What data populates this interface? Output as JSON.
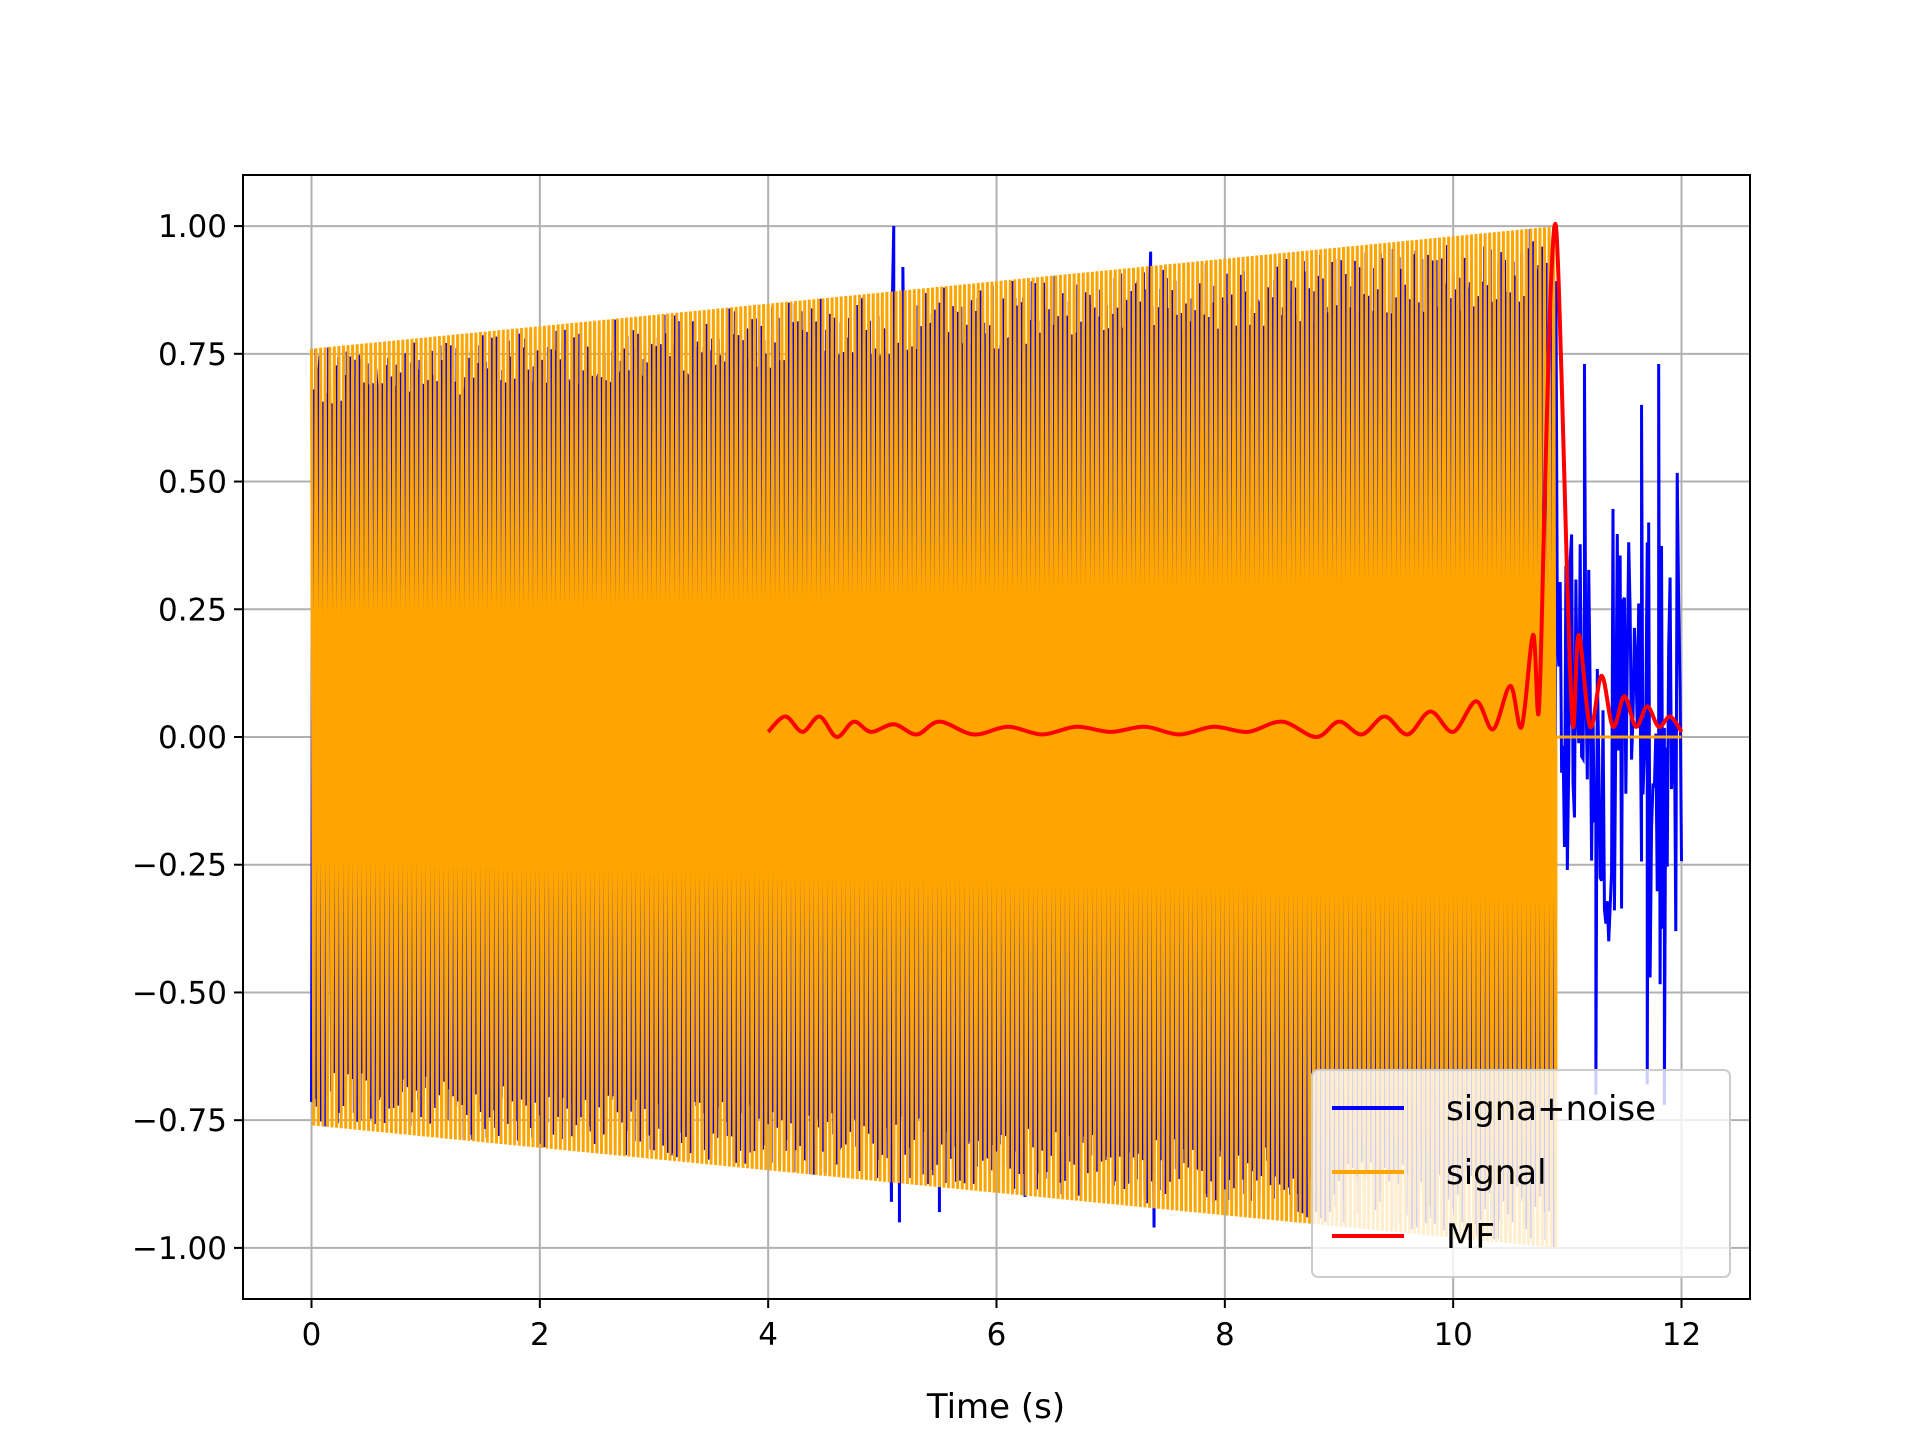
{
  "chart_data": {
    "type": "line",
    "title": "",
    "xlabel": "Time (s)",
    "ylabel": "",
    "xlim": [
      -0.6,
      12.6
    ],
    "ylim": [
      -1.1,
      1.1
    ],
    "grid": true,
    "legend_position": "lower-right",
    "x_ticks": [
      0,
      2,
      4,
      6,
      8,
      10,
      12
    ],
    "x_tick_labels": [
      "0",
      "2",
      "4",
      "6",
      "8",
      "10",
      "12"
    ],
    "y_ticks": [
      1.0,
      0.75,
      0.5,
      0.25,
      0.0,
      -0.25,
      -0.5,
      -0.75,
      -1.0
    ],
    "y_tick_labels": [
      "1.00",
      "0.75",
      "0.50",
      "0.25",
      "0.00",
      "−0.25",
      "−0.50",
      "−0.75",
      "−1.00"
    ],
    "series": [
      {
        "name": "signa+noise",
        "color": "#0000ff",
        "description_kind": "noisy-chirp",
        "x_range": [
          0,
          12
        ],
        "spikes": [
          {
            "x": 5.1,
            "y": 1.0
          },
          {
            "x": 5.18,
            "y": 0.92
          },
          {
            "x": 5.5,
            "y": 0.85
          },
          {
            "x": 7.35,
            "y": 0.95
          },
          {
            "x": 5.15,
            "y": -0.95
          },
          {
            "x": 5.08,
            "y": -0.91
          },
          {
            "x": 5.5,
            "y": -0.93
          },
          {
            "x": 6.25,
            "y": -0.9
          },
          {
            "x": 7.38,
            "y": -0.96
          },
          {
            "x": 11.15,
            "y": 0.73
          },
          {
            "x": 11.65,
            "y": 0.65
          },
          {
            "x": 11.8,
            "y": 0.73
          },
          {
            "x": 11.25,
            "y": -0.7
          },
          {
            "x": 11.7,
            "y": -0.68
          },
          {
            "x": 11.85,
            "y": -0.72
          }
        ]
      },
      {
        "name": "signal",
        "color": "#ffa500",
        "x_range": [
          0,
          10.9
        ],
        "amplitude_start": 0.76,
        "amplitude_end": 1.0
      },
      {
        "name": "MF",
        "color": "#ff0000",
        "x": [
          4.0,
          4.15,
          4.3,
          4.45,
          4.6,
          4.75,
          4.9,
          5.1,
          5.3,
          5.5,
          5.8,
          6.1,
          6.4,
          6.7,
          7.0,
          7.3,
          7.6,
          7.9,
          8.2,
          8.5,
          8.8,
          9.0,
          9.2,
          9.4,
          9.6,
          9.8,
          10.0,
          10.2,
          10.35,
          10.5,
          10.6,
          10.7,
          10.75,
          10.8,
          10.85,
          10.9,
          10.95,
          11.0,
          11.05,
          11.1,
          11.2,
          11.3,
          11.4,
          11.5,
          11.6,
          11.7,
          11.8,
          11.9,
          12.0
        ],
        "y": [
          0.01,
          0.04,
          0.01,
          0.04,
          0.0,
          0.03,
          0.01,
          0.025,
          0.005,
          0.03,
          0.005,
          0.02,
          0.005,
          0.02,
          0.01,
          0.02,
          0.005,
          0.02,
          0.01,
          0.03,
          0.0,
          0.03,
          0.005,
          0.04,
          0.005,
          0.05,
          0.01,
          0.07,
          0.015,
          0.1,
          0.02,
          0.2,
          0.05,
          0.45,
          0.85,
          1.0,
          0.7,
          0.3,
          0.02,
          0.2,
          0.02,
          0.12,
          0.02,
          0.08,
          0.02,
          0.06,
          0.02,
          0.04,
          0.01
        ]
      }
    ]
  }
}
